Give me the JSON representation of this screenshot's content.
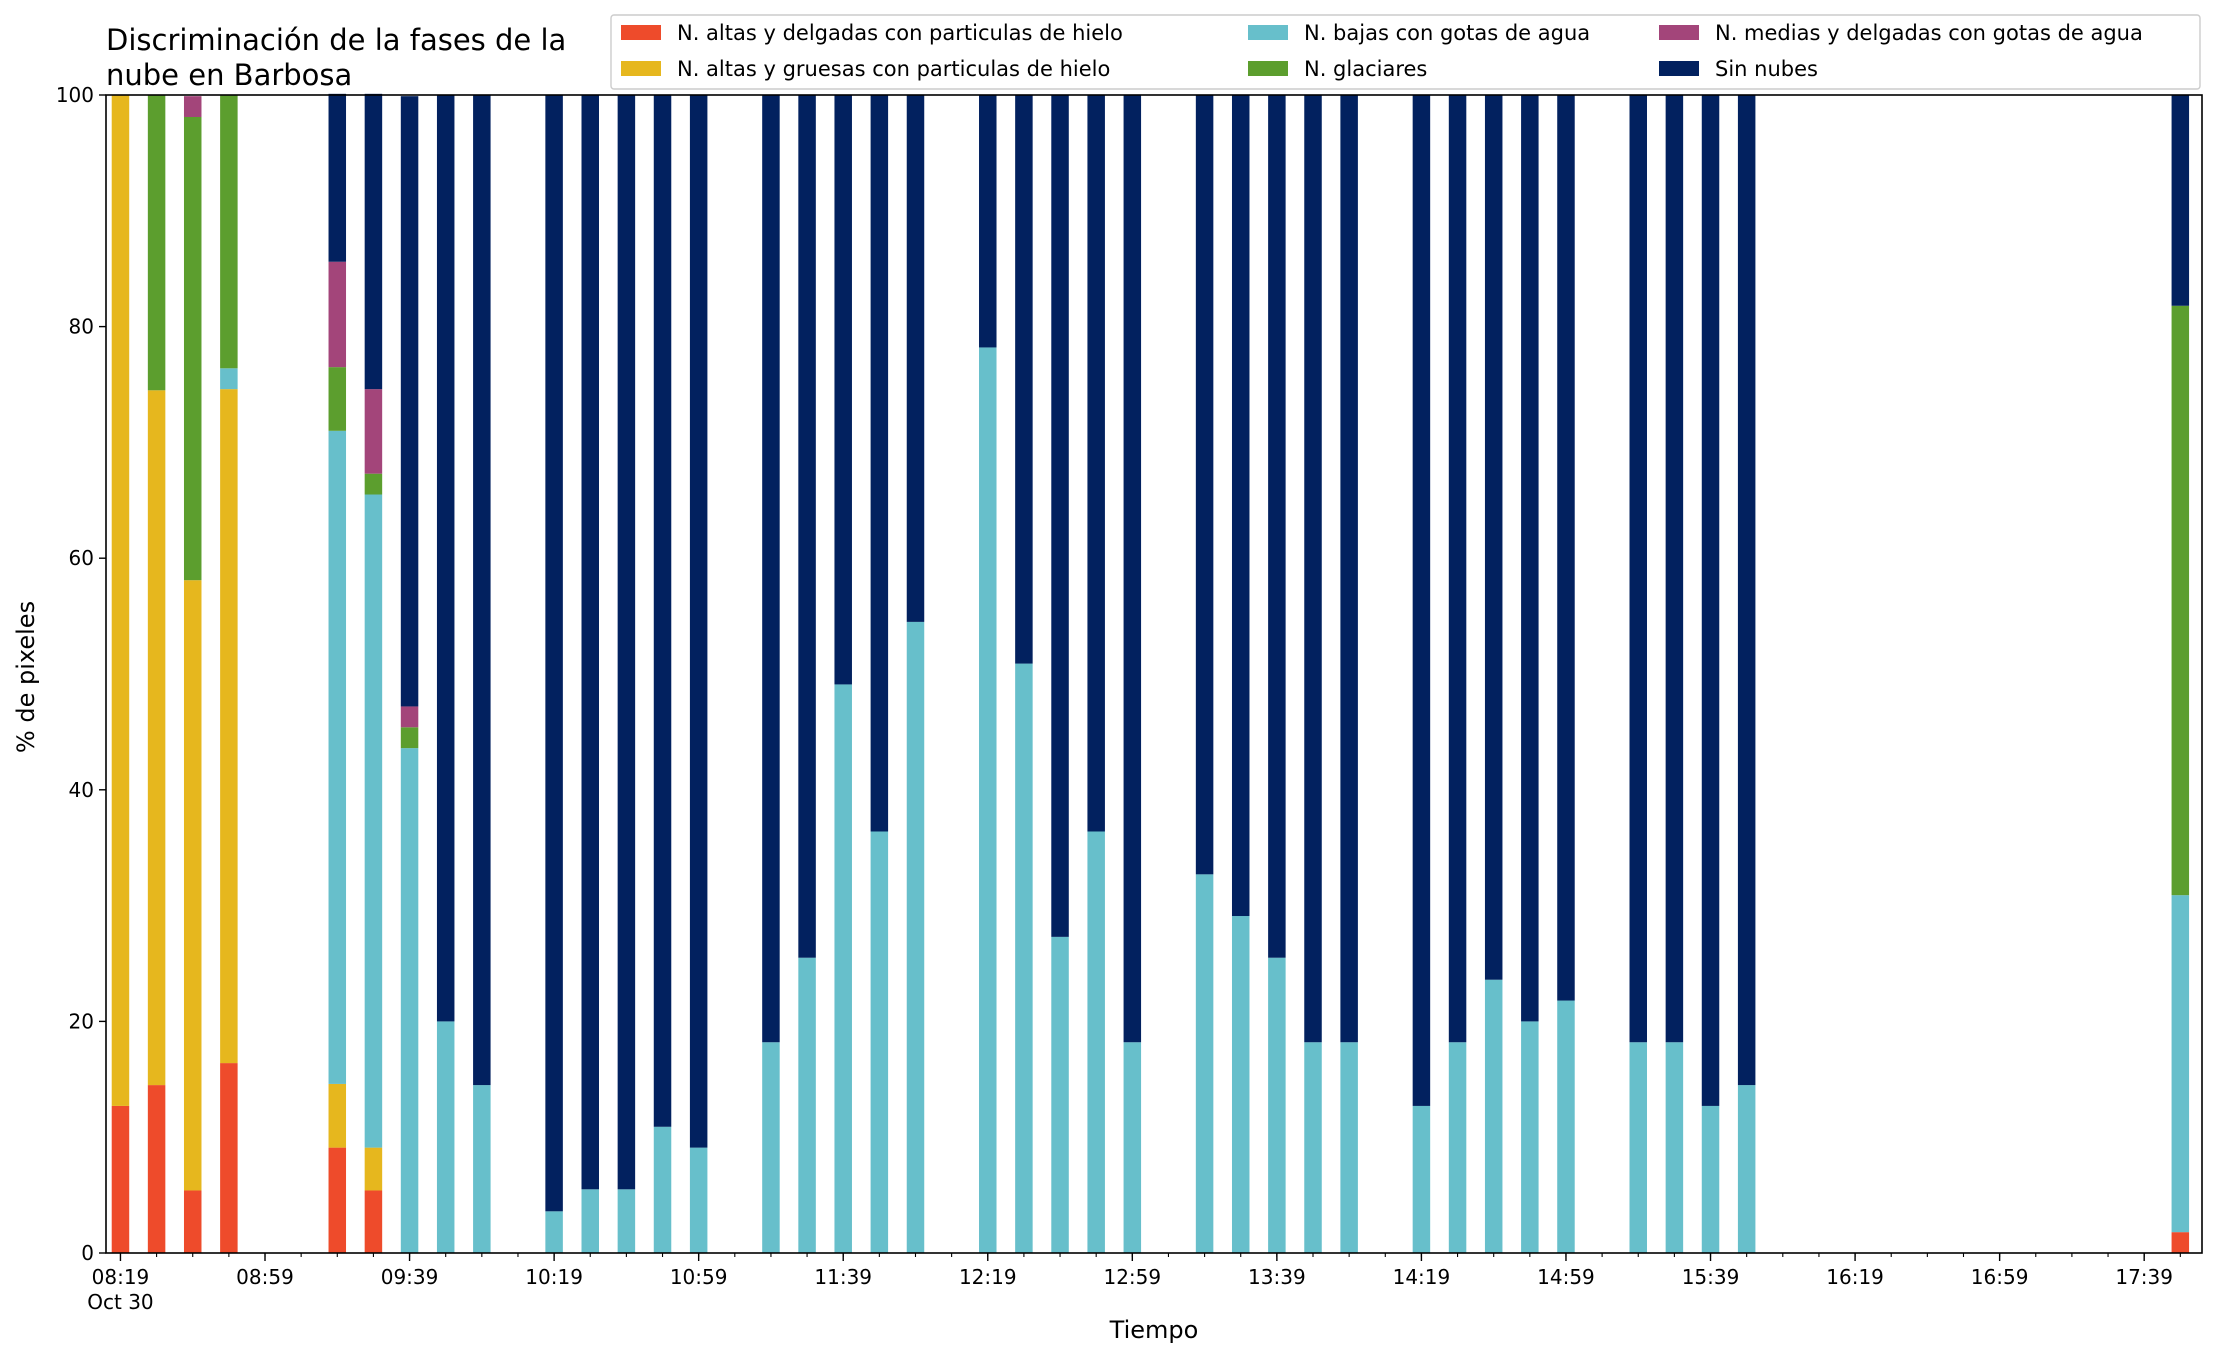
{
  "chart_data": {
    "type": "bar",
    "stacked": true,
    "title": "Discriminación de la fases de la\nnube en Barbosa",
    "xlabel": "Tiempo",
    "ylabel": "% de pixeles",
    "ylim": [
      0,
      100
    ],
    "yticks": [
      0,
      20,
      40,
      60,
      80,
      100
    ],
    "xlim": [
      "08:15",
      "17:55"
    ],
    "xticks": [
      {
        "time": "08:19",
        "label": "08:19",
        "sublabel": "Oct 30"
      },
      {
        "time": "08:59",
        "label": "08:59"
      },
      {
        "time": "09:39",
        "label": "09:39"
      },
      {
        "time": "10:19",
        "label": "10:19"
      },
      {
        "time": "10:59",
        "label": "10:59"
      },
      {
        "time": "11:39",
        "label": "11:39"
      },
      {
        "time": "12:19",
        "label": "12:19"
      },
      {
        "time": "12:59",
        "label": "12:59"
      },
      {
        "time": "13:39",
        "label": "13:39"
      },
      {
        "time": "14:19",
        "label": "14:19"
      },
      {
        "time": "14:59",
        "label": "14:59"
      },
      {
        "time": "15:39",
        "label": "15:39"
      },
      {
        "time": "16:19",
        "label": "16:19"
      },
      {
        "time": "16:59",
        "label": "16:59"
      },
      {
        "time": "17:39",
        "label": "17:39"
      }
    ],
    "legend_position": "top-right",
    "legend_columns": 3,
    "grid": false,
    "x": [
      "08:19",
      "08:29",
      "08:39",
      "08:49",
      "09:19",
      "09:29",
      "09:39",
      "09:49",
      "09:59",
      "10:19",
      "10:29",
      "10:39",
      "10:49",
      "10:59",
      "11:19",
      "11:29",
      "11:39",
      "11:49",
      "11:59",
      "12:19",
      "12:29",
      "12:39",
      "12:49",
      "12:59",
      "13:19",
      "13:29",
      "13:39",
      "13:49",
      "13:59",
      "14:19",
      "14:29",
      "14:39",
      "14:49",
      "14:59",
      "15:19",
      "15:29",
      "15:39",
      "15:49",
      "17:49"
    ],
    "series": [
      {
        "name": "N. altas y delgadas con particulas de hielo",
        "color": "#ee4b2b",
        "values": [
          12.7,
          14.5,
          5.4,
          16.4,
          9.1,
          5.4,
          0,
          0,
          0,
          0,
          0,
          0,
          0,
          0,
          0,
          0,
          0,
          0,
          0,
          0,
          0,
          0,
          0,
          0,
          0,
          0,
          0,
          0,
          0,
          0,
          0,
          0,
          0,
          0,
          0,
          0,
          0,
          0,
          1.8
        ]
      },
      {
        "name": "N. altas y gruesas con particulas de hielo",
        "color": "#e6b71e",
        "values": [
          87.3,
          60.0,
          52.7,
          58.2,
          5.5,
          3.7,
          0,
          0,
          0,
          0,
          0,
          0,
          0,
          0,
          0,
          0,
          0,
          0,
          0,
          0,
          0,
          0,
          0,
          0,
          0,
          0,
          0,
          0,
          0,
          0,
          0,
          0,
          0,
          0,
          0,
          0,
          0,
          0,
          0
        ]
      },
      {
        "name": "N. bajas con gotas de agua",
        "color": "#67bfcb",
        "values": [
          0,
          0,
          0,
          1.8,
          56.4,
          56.4,
          43.6,
          20.0,
          14.5,
          3.6,
          5.5,
          5.5,
          10.9,
          9.1,
          18.2,
          25.5,
          49.1,
          36.4,
          54.5,
          78.2,
          50.9,
          27.3,
          36.4,
          18.2,
          32.7,
          29.1,
          25.5,
          18.2,
          18.2,
          12.7,
          18.2,
          23.6,
          20.0,
          21.8,
          18.2,
          18.2,
          12.7,
          14.5,
          29.1
        ]
      },
      {
        "name": "N. glaciares",
        "color": "#5c9e2e",
        "values": [
          0,
          25.5,
          40.0,
          23.6,
          5.5,
          1.8,
          1.8,
          0,
          0,
          0,
          0,
          0,
          0,
          0,
          0,
          0,
          0,
          0,
          0,
          0,
          0,
          0,
          0,
          0,
          0,
          0,
          0,
          0,
          0,
          0,
          0,
          0,
          0,
          0,
          0,
          0,
          0,
          0,
          50.9
        ]
      },
      {
        "name": "N. medias y delgadas con gotas de agua",
        "color": "#a3457a",
        "values": [
          0,
          0,
          1.8,
          0,
          9.1,
          7.3,
          1.8,
          0,
          0,
          0,
          0,
          0,
          0,
          0,
          0,
          0,
          0,
          0,
          0,
          0,
          0,
          0,
          0,
          0,
          0,
          0,
          0,
          0,
          0,
          0,
          0,
          0,
          0,
          0,
          0,
          0,
          0,
          0,
          0
        ]
      },
      {
        "name": "Sin nubes",
        "color": "#02215f",
        "values": [
          0,
          0,
          0,
          0,
          14.5,
          25.5,
          52.7,
          80.0,
          85.5,
          96.4,
          94.5,
          94.5,
          89.1,
          90.9,
          81.8,
          74.5,
          50.9,
          63.6,
          45.5,
          21.8,
          49.1,
          72.7,
          63.6,
          81.8,
          67.3,
          70.9,
          74.5,
          81.8,
          81.8,
          87.3,
          81.8,
          76.4,
          80.0,
          78.2,
          81.8,
          81.8,
          87.3,
          85.5,
          18.2
        ]
      }
    ],
    "legend_order": [
      0,
      1,
      2,
      3,
      4,
      5
    ]
  }
}
